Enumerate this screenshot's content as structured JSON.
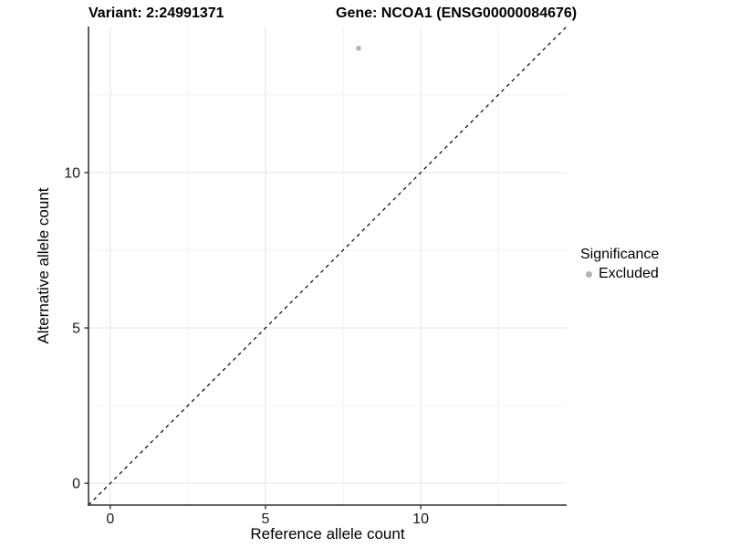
{
  "chart_data": {
    "type": "scatter",
    "title_variant": "Variant: 2:24991371",
    "title_gene": "Gene: NCOA1 (ENSG00000084676)",
    "xlabel": "Reference allele count",
    "ylabel": "Alternative allele count",
    "xlim": [
      -0.7,
      14.7
    ],
    "ylim": [
      -0.7,
      14.7
    ],
    "x_major_ticks": [
      0,
      5,
      10
    ],
    "y_major_ticks": [
      0,
      5,
      10
    ],
    "x_minor_ticks": [
      2.5,
      7.5,
      12.5
    ],
    "y_minor_ticks": [
      2.5,
      7.5,
      12.5
    ],
    "grid": "major-and-minor",
    "legend_position": "right",
    "series": [
      {
        "name": "Excluded",
        "color": "#b3b3b3",
        "points": [
          {
            "x": 8,
            "y": 14
          }
        ]
      }
    ],
    "reference_line": {
      "kind": "identity",
      "equation": "y = x",
      "style": "dashed",
      "color": "#000000"
    },
    "legend": {
      "title": "Significance",
      "items": [
        {
          "label": "Excluded",
          "color": "#b3b3b3",
          "marker": "circle"
        }
      ]
    }
  },
  "colors": {
    "background": "#ffffff",
    "grid_major": "#e4e4e4",
    "grid_minor": "#f2f2f2",
    "axis_line": "#4d4d4d",
    "tick_mark": "#333333",
    "tick_label": "#1a1a1a",
    "point": "#b3b3b3"
  }
}
